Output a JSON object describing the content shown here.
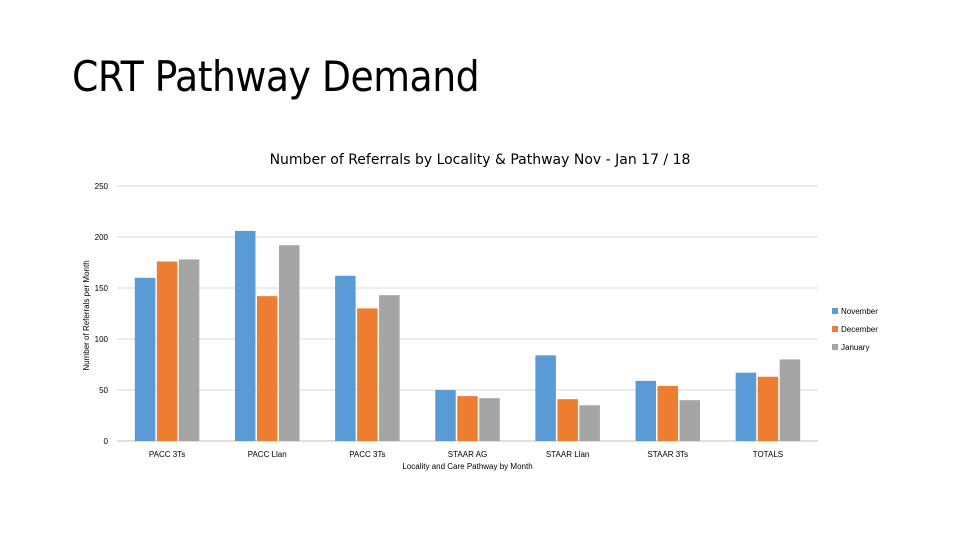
{
  "slide": {
    "title": "CRT Pathway Demand"
  },
  "chart_data": {
    "type": "bar",
    "title": "Number of Referrals by Locality & Pathway Nov - Jan 17 / 18",
    "xlabel": "Locality and Care Pathway by Month",
    "ylabel": "Number of Referrals per Month",
    "ylim": [
      0,
      250
    ],
    "yticks": [
      0,
      50,
      100,
      150,
      200,
      250
    ],
    "grid": true,
    "legend_position": "right",
    "categories": [
      "PACC 3Ts",
      "PACC Llan",
      "PACC 3Ts",
      "STAAR AG",
      "STAAR Llan",
      "STAAR 3Ts",
      "TOTALS"
    ],
    "series": [
      {
        "name": "November",
        "color": "#5B9BD5",
        "values": [
          160,
          206,
          162,
          50,
          84,
          59,
          67
        ]
      },
      {
        "name": "December",
        "color": "#ED7D31",
        "values": [
          176,
          142,
          130,
          44,
          41,
          54,
          63
        ]
      },
      {
        "name": "January",
        "color": "#A5A5A5",
        "values": [
          178,
          192,
          143,
          42,
          35,
          40,
          80
        ]
      }
    ]
  }
}
